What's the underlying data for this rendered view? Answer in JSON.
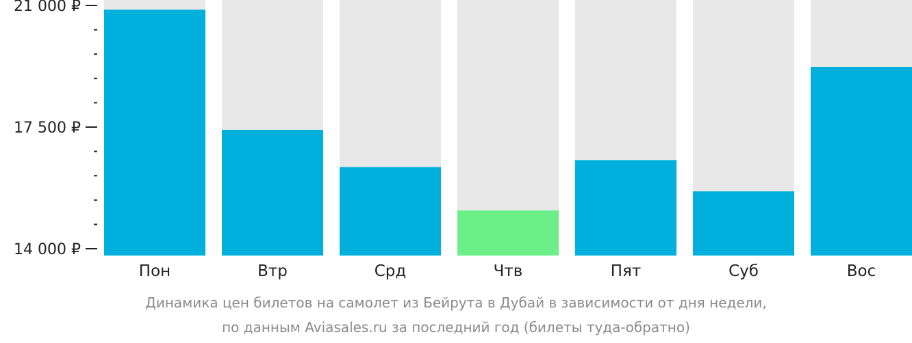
{
  "chart_data": {
    "type": "bar",
    "categories": [
      "Пон",
      "Втр",
      "Срд",
      "Чтв",
      "Пят",
      "Суб",
      "Вос"
    ],
    "values": [
      20880,
      17420,
      16350,
      15100,
      16550,
      15650,
      19230
    ],
    "ylim": [
      14000,
      21000
    ],
    "y_ticks": [
      {
        "value": 21000,
        "label": "21 000 ₽"
      },
      {
        "value": 17500,
        "label": "17 500 ₽"
      },
      {
        "value": 14000,
        "label": "14 000 ₽"
      }
    ],
    "y_minor_step": 700,
    "highlight_index": 3,
    "colors": {
      "bar": "#00b0dc",
      "highlight": "#6cef88",
      "background_bar": "#e8e8e8",
      "axis": "#222222"
    },
    "caption": [
      "Динамика цен билетов на самолет из Бейрута в Дубай в зависимости от дня недели,",
      "по данным Aviasales.ru за последний год (билеты туда-обратно)"
    ],
    "grid": false,
    "legend": "none"
  }
}
